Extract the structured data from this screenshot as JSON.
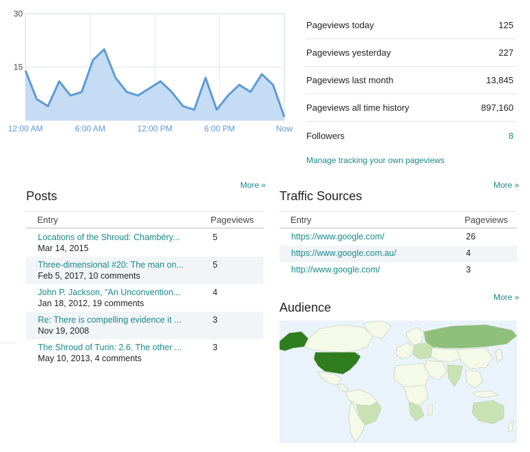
{
  "chart_data": {
    "type": "area",
    "title": "",
    "xlabel": "",
    "ylabel": "",
    "ylim": [
      0,
      30
    ],
    "y_ticks": [
      "30",
      "15"
    ],
    "x_ticks": [
      "12:00 AM",
      "6:00 AM",
      "12:00 PM",
      "6:00 PM",
      "Now"
    ],
    "values": [
      14,
      6,
      4,
      11,
      7,
      8,
      17,
      20,
      12,
      8,
      7,
      9,
      11,
      8,
      4,
      3,
      12,
      3,
      7,
      10,
      8,
      13,
      10,
      1
    ],
    "color": "#5b9bd5",
    "fill_color": "#c6dcf4",
    "grid": true
  },
  "stats": [
    {
      "label": "Pageviews today",
      "value": "125",
      "link": false
    },
    {
      "label": "Pageviews yesterday",
      "value": "227",
      "link": false
    },
    {
      "label": "Pageviews last month",
      "value": "13,845",
      "link": false
    },
    {
      "label": "Pageviews all time history",
      "value": "897,160",
      "link": false
    },
    {
      "label": "Followers",
      "value": "8",
      "link": true
    }
  ],
  "manage_link": "Manage tracking your own pageviews",
  "posts": {
    "title": "Posts",
    "more": "More »",
    "columns": [
      "Entry",
      "Pageviews"
    ],
    "rows": [
      {
        "title": "Locations of the Shroud: Chambéry...",
        "meta": "Mar 14, 2015",
        "count": "5"
      },
      {
        "title": "Three-dimensional #20: The man on...",
        "meta": "Feb 5, 2017, 10 comments",
        "count": "5"
      },
      {
        "title": "John P. Jackson, \"An Unconvention...",
        "meta": "Jan 18, 2012, 19 comments",
        "count": "4"
      },
      {
        "title": "Re: There is compelling evidence it ...",
        "meta": "Nov 19, 2008",
        "count": "3"
      },
      {
        "title": "The Shroud of Turin: 2.6. The other ...",
        "meta": "May 10, 2013, 4 comments",
        "count": "3"
      }
    ]
  },
  "traffic": {
    "title": "Traffic Sources",
    "more": "More »",
    "columns": [
      "Entry",
      "Pageviews"
    ],
    "rows": [
      {
        "url": "https://www.google.com/",
        "count": "26"
      },
      {
        "url": "https://www.google.com.au/",
        "count": "4"
      },
      {
        "url": "http://www.google.com/",
        "count": "3"
      }
    ]
  },
  "audience": {
    "title": "Audience",
    "more": "More »",
    "colors": {
      "ocean": "#eaf3fb",
      "low": "#f4f9e8",
      "mid": "#c9e2b3",
      "high": "#8fbf7a",
      "top": "#2e7d1e",
      "border": "#b9c9a8"
    }
  }
}
